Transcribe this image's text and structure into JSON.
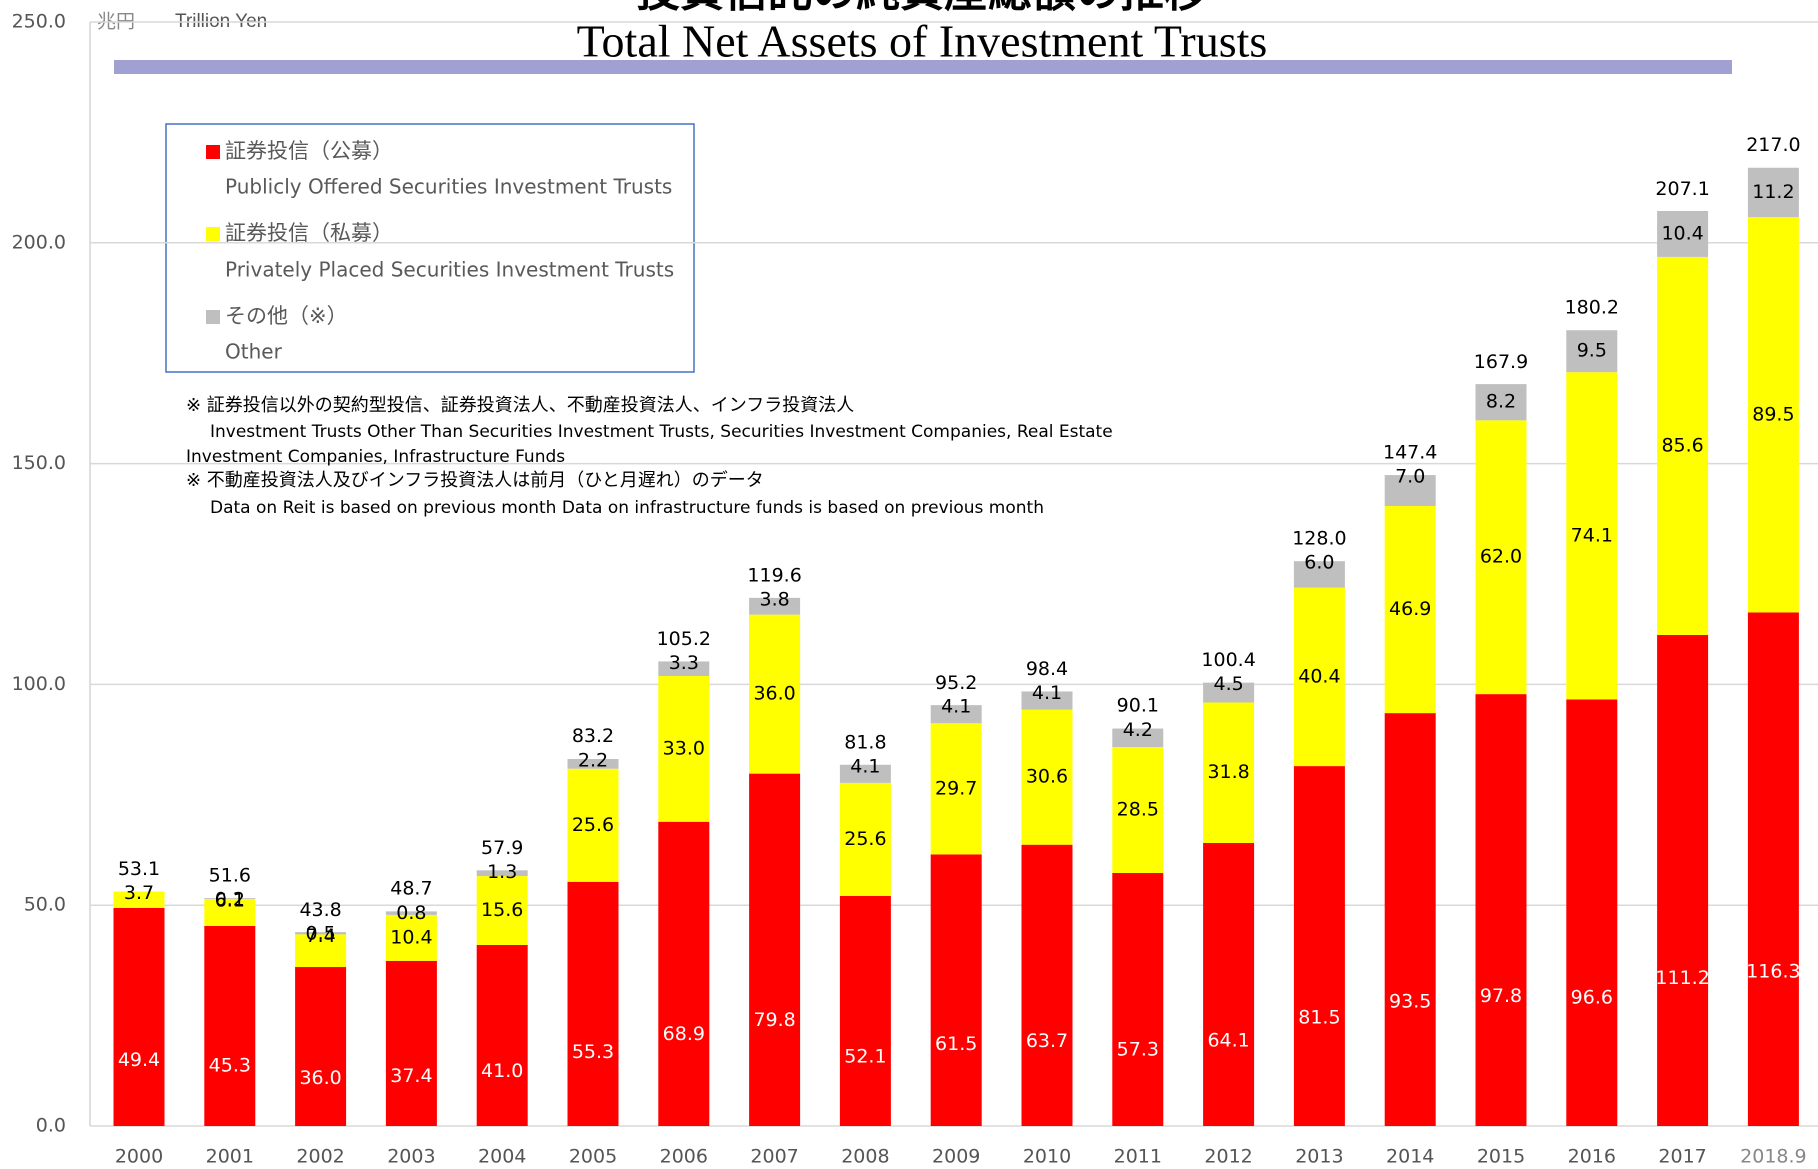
{
  "chart_data": {
    "type": "stacked_bar",
    "title_ja": "投資信託の純資産総額の推移",
    "title": "Total Net Assets of Investment Trusts",
    "unit_ja": "兆円",
    "unit": "Trillion Yen",
    "categories": [
      "2000",
      "2001",
      "2002",
      "2003",
      "2004",
      "2005",
      "2006",
      "2007",
      "2008",
      "2009",
      "2010",
      "2011",
      "2012",
      "2013",
      "2014",
      "2015",
      "2016",
      "2017",
      "2018.9"
    ],
    "series": [
      {
        "name": "証券投信（公募）",
        "name_en": "Publicly Offered Securities Investment Trusts",
        "color": "#ff0000",
        "label_color": "#ffffff",
        "values": [
          49.4,
          45.3,
          36.0,
          37.4,
          41.0,
          55.3,
          68.9,
          79.8,
          52.1,
          61.5,
          63.7,
          57.3,
          64.1,
          81.5,
          93.5,
          97.8,
          96.6,
          111.2,
          116.3
        ],
        "value_labels": [
          "49.4",
          "45.3",
          "36.0",
          "37.4",
          "41.0",
          "55.3",
          "68.9",
          "79.8",
          "52.1",
          "61.5",
          "63.7",
          "57.3",
          "64.1",
          "81.5",
          "93.5",
          "97.8",
          "96.6",
          "111.2",
          "116.3"
        ]
      },
      {
        "name": "証券投信（私募）",
        "name_en": "Privately Placed Securities Investment Trusts",
        "color": "#ffff00",
        "label_color": "#000000",
        "values": [
          3.7,
          6.1,
          7.4,
          10.4,
          15.6,
          25.6,
          33.0,
          36.0,
          25.6,
          29.7,
          30.6,
          28.5,
          31.8,
          40.4,
          46.9,
          62.0,
          74.1,
          85.6,
          89.5
        ],
        "value_labels": [
          "3.7",
          "6.1",
          "7.4",
          "10.4",
          "15.6",
          "25.6",
          "33.0",
          "36.0",
          "25.6",
          "29.7",
          "30.6",
          "28.5",
          "31.8",
          "40.4",
          "46.9",
          "62.0",
          "74.1",
          "85.6",
          "89.5"
        ]
      },
      {
        "name": "その他（※）",
        "name_en": "Other",
        "color": "#bfbfbf",
        "label_color": "#000000",
        "values": [
          null,
          0.2,
          0.5,
          0.8,
          1.3,
          2.2,
          3.3,
          3.8,
          4.1,
          4.1,
          4.1,
          4.2,
          4.5,
          6.0,
          7.0,
          8.2,
          9.5,
          10.4,
          11.2
        ],
        "value_labels": [
          null,
          "0.2",
          "0.5",
          "0.8",
          "1.3",
          "2.2",
          "3.3",
          "3.8",
          "4.1",
          "4.1",
          "4.1",
          "4.2",
          "4.5",
          "6.0",
          "7.0",
          "8.2",
          "9.5",
          "10.4",
          "11.2"
        ]
      }
    ],
    "totals": [
      53.1,
      51.6,
      43.8,
      48.7,
      57.9,
      83.2,
      105.2,
      119.6,
      81.8,
      95.2,
      98.4,
      90.1,
      100.4,
      128.0,
      147.4,
      167.9,
      180.2,
      207.1,
      217.0
    ],
    "total_labels": [
      "53.1",
      "51.6",
      "43.8",
      "48.7",
      "57.9",
      "83.2",
      "105.2",
      "119.6",
      "81.8",
      "95.2",
      "98.4",
      "90.1",
      "100.4",
      "128.0",
      "147.4",
      "167.9",
      "180.2",
      "207.1",
      "217.0"
    ],
    "notes": [
      "※ 証券投信以外の契約型投信、証券投資法人、不動産投資法人、インフラ投資法人",
      "Investment Trusts Other Than Securities Investment Trusts, Securities Investment Companies, Real Estate",
      "Investment Companies, Infrastructure Funds",
      "※ 不動産投資法人及びインフラ投資法人は前月（ひと月遅れ）のデータ",
      "Data on Reit is based on previous month Data on infrastructure funds is based on previous month"
    ],
    "ylim": [
      0,
      250
    ],
    "yticks": [
      {
        "value": 0,
        "label": "0.0"
      },
      {
        "value": 50,
        "label": "50.0"
      },
      {
        "value": 100,
        "label": "100.0"
      },
      {
        "value": 150,
        "label": "150.0"
      },
      {
        "value": 200,
        "label": "200.0"
      },
      {
        "value": 250,
        "label": "250.0"
      }
    ],
    "grid": true
  }
}
